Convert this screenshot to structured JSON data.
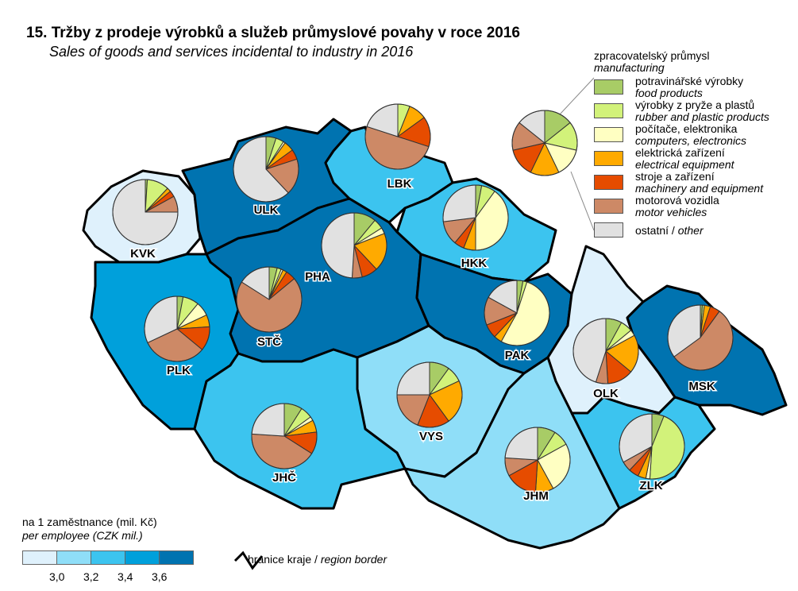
{
  "title": "15. Tržby z prodeje výrobků a služeb průmyslové povahy v roce 2016",
  "subtitle": "Sales of goods and services incidental to industry in 2016",
  "legend": {
    "heading_cz": "zpracovatelský průmysl",
    "heading_en": "manufacturing",
    "categories": [
      {
        "cz": "potravinářské výrobky",
        "en": "food products",
        "color": "#a8cc66"
      },
      {
        "cz": "výrobky z pryže a plastů",
        "en": "rubber and plastic products",
        "color": "#d2f27a"
      },
      {
        "cz": "počítače, elektronika",
        "en": "computers, electronics",
        "color": "#ffffc2"
      },
      {
        "cz": "elektrická zařízení",
        "en": "electrical equipment",
        "color": "#ffaa00"
      },
      {
        "cz": "stroje a zařízení",
        "en": "machinery and equipment",
        "color": "#e64c00"
      },
      {
        "cz": "motorová vozidla",
        "en": "motor vehicles",
        "color": "#cd8966"
      },
      {
        "cz": "ostatní / ",
        "en": "other",
        "color": "#e1e1e1"
      }
    ]
  },
  "scale": {
    "title_cz": "na 1 zaměstnance (mil. Kč)",
    "title_en": "per employee (CZK mil.)",
    "colors": [
      "#dff1fc",
      "#8fdef8",
      "#3cc4ef",
      "#00a0db",
      "#0073b0"
    ],
    "ticks": [
      "3,0",
      "3,2",
      "3,4",
      "3,6"
    ]
  },
  "border_legend": {
    "cz": "hranice kraje / ",
    "en": "region border"
  },
  "chart_data": {
    "type": "pie-map",
    "unit": "percent share of sales",
    "categories": [
      "food products",
      "rubber and plastic products",
      "computers, electronics",
      "electrical equipment",
      "machinery and equipment",
      "motor vehicles",
      "other"
    ],
    "regions": [
      {
        "code": "KVK",
        "class": 1,
        "shares": [
          1,
          11,
          0,
          2,
          3,
          8,
          75
        ]
      },
      {
        "code": "ULK",
        "class": 5,
        "shares": [
          5,
          4,
          1,
          5,
          5,
          18,
          62
        ]
      },
      {
        "code": "LBK",
        "class": 3,
        "shares": [
          0,
          6,
          0,
          9,
          15,
          50,
          20
        ]
      },
      {
        "code": "HKK",
        "class": 3,
        "shares": [
          3,
          7,
          40,
          6,
          5,
          12,
          27
        ]
      },
      {
        "code": "PHA",
        "class": 5,
        "shares": [
          11,
          5,
          3,
          19,
          8,
          5,
          49
        ]
      },
      {
        "code": "STČ",
        "class": 5,
        "shares": [
          4,
          2,
          1,
          2,
          5,
          70,
          16
        ]
      },
      {
        "code": "PLK",
        "class": 4,
        "shares": [
          3,
          8,
          7,
          6,
          12,
          32,
          32
        ]
      },
      {
        "code": "PAK",
        "class": 5,
        "shares": [
          3,
          2,
          53,
          4,
          7,
          14,
          17
        ]
      },
      {
        "code": "OLK",
        "class": 1,
        "shares": [
          8,
          6,
          3,
          19,
          13,
          6,
          45
        ]
      },
      {
        "code": "MSK",
        "class": 5,
        "shares": [
          1,
          1,
          0,
          3,
          5,
          55,
          35
        ]
      },
      {
        "code": "VYS",
        "class": 2,
        "shares": [
          10,
          8,
          0,
          22,
          16,
          19,
          25
        ]
      },
      {
        "code": "JHČ",
        "class": 3,
        "shares": [
          9,
          6,
          2,
          6,
          11,
          42,
          24
        ]
      },
      {
        "code": "JHM",
        "class": 2,
        "shares": [
          9,
          8,
          25,
          9,
          16,
          9,
          24
        ]
      },
      {
        "code": "ZLK",
        "class": 3,
        "shares": [
          6,
          45,
          2,
          4,
          5,
          5,
          33
        ]
      }
    ]
  }
}
